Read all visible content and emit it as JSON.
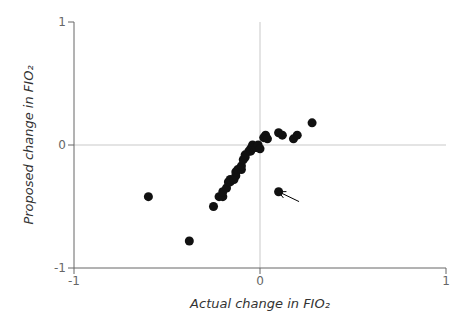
{
  "chart_data": {
    "type": "scatter",
    "x": [
      -0.6,
      -0.38,
      -0.25,
      -0.22,
      -0.2,
      -0.2,
      -0.18,
      -0.17,
      -0.16,
      -0.16,
      -0.14,
      -0.13,
      -0.13,
      -0.12,
      -0.1,
      -0.1,
      -0.09,
      -0.08,
      -0.08,
      -0.06,
      -0.05,
      -0.05,
      -0.04,
      -0.04,
      -0.03,
      -0.02,
      -0.01,
      0.0,
      0.02,
      0.03,
      0.04,
      0.1,
      0.12,
      0.18,
      0.2,
      0.28,
      0.1
    ],
    "values": [
      -0.42,
      -0.78,
      -0.5,
      -0.42,
      -0.42,
      -0.38,
      -0.35,
      -0.3,
      -0.3,
      -0.28,
      -0.28,
      -0.25,
      -0.22,
      -0.2,
      -0.2,
      -0.17,
      -0.12,
      -0.1,
      -0.08,
      -0.05,
      -0.05,
      -0.03,
      -0.02,
      0.0,
      -0.02,
      -0.02,
      0.0,
      -0.03,
      0.06,
      0.08,
      0.05,
      0.1,
      0.08,
      0.05,
      0.08,
      0.18,
      -0.38
    ],
    "xlabel": "Actual change in FIO₂",
    "ylabel": "Proposed change in FIO₂",
    "xlim": [
      -1,
      1
    ],
    "ylim": [
      -1,
      1
    ],
    "xticks": [
      -1,
      0,
      1
    ],
    "yticks": [
      -1,
      0,
      1
    ],
    "color": "#111111",
    "grid": false,
    "annotations": [
      {
        "x": 0.1,
        "y": -0.38,
        "x_tail": 0.21,
        "y_tail": -0.46
      }
    ]
  }
}
